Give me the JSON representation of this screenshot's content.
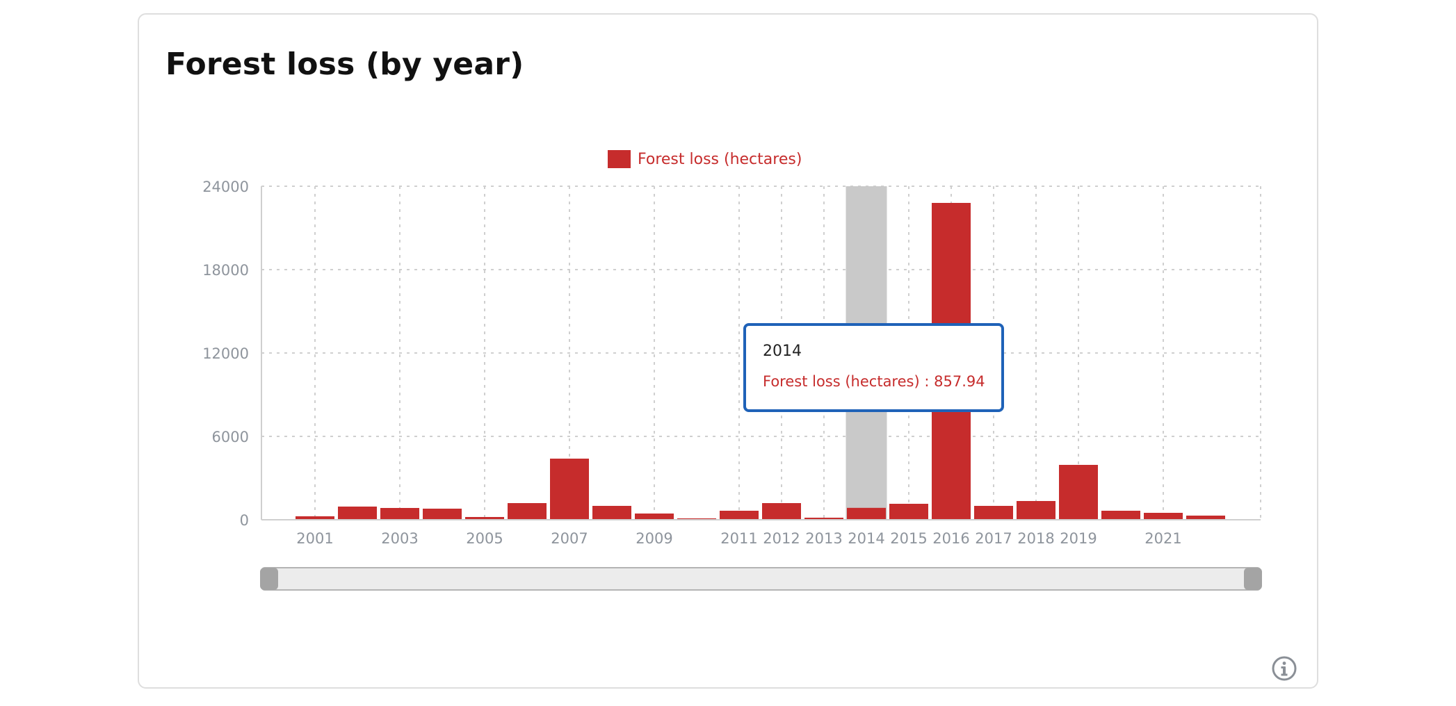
{
  "card": {
    "title": "Forest loss (by year)",
    "info_icon": "info-circle-icon"
  },
  "colors": {
    "bar": "#c62c2c",
    "highlight": "#c9c9c9",
    "grid": "#cfcfcf",
    "tooltip_border": "#1f62b8",
    "scrollbar_track": "#ececec",
    "scrollbar_handle": "#a4a4a4"
  },
  "tooltip": {
    "year": "2014",
    "series_label": "Forest loss (hectares)",
    "separator": " : ",
    "value": "857.94"
  },
  "chart_data": {
    "type": "bar",
    "title": "",
    "xlabel": "",
    "ylabel": "",
    "ylim": [
      0,
      24000
    ],
    "yticks": [
      0,
      6000,
      12000,
      18000,
      24000
    ],
    "grid": true,
    "legend_position": "top-center",
    "highlighted_category": "2014",
    "categories": [
      "2001",
      "2002",
      "2003",
      "2004",
      "2005",
      "2006",
      "2007",
      "2008",
      "2009",
      "2010",
      "2011",
      "2012",
      "2013",
      "2014",
      "2015",
      "2016",
      "2017",
      "2018",
      "2019",
      "2020",
      "2021",
      "2022"
    ],
    "xtick_labels": [
      "2001",
      "",
      "2003",
      "",
      "2005",
      "",
      "2007",
      "",
      "2009",
      "",
      "2011",
      "2012",
      "2013",
      "2014",
      "2015",
      "2016",
      "2017",
      "2018",
      "2019",
      "",
      "2021",
      ""
    ],
    "series": [
      {
        "name": "Forest loss (hectares)",
        "values": [
          250,
          950,
          850,
          800,
          200,
          1200,
          4400,
          1000,
          450,
          80,
          650,
          1200,
          150,
          857.94,
          1150,
          22800,
          1000,
          1350,
          3950,
          650,
          500,
          300
        ]
      }
    ]
  }
}
